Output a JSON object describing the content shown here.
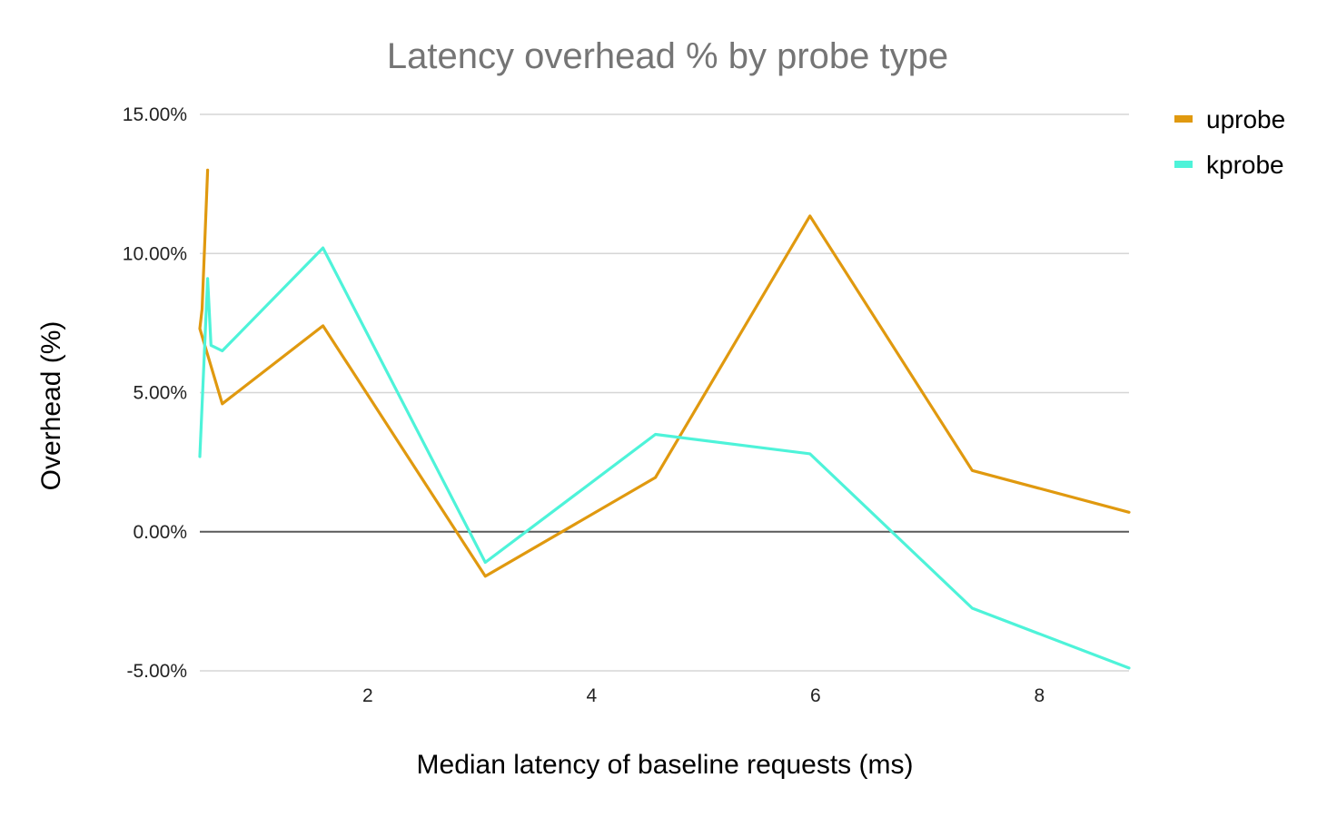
{
  "chart_data": {
    "type": "line",
    "title": "Latency overhead % by probe type",
    "xlabel": "Median latency of baseline requests (ms)",
    "ylabel": "Overhead (%)",
    "xlim": [
      0.5,
      8.8
    ],
    "ylim": [
      -5,
      15
    ],
    "x_ticks": [
      2,
      4,
      6,
      8
    ],
    "x_tick_labels": [
      "2",
      "4",
      "6",
      "8"
    ],
    "y_ticks": [
      -5,
      0,
      5,
      10,
      15
    ],
    "y_tick_labels": [
      "-5.00%",
      "0.00%",
      "5.00%",
      "10.00%",
      "15.00%"
    ],
    "grid": true,
    "legend_position": "top-right",
    "series": [
      {
        "name": "uprobe",
        "color": "#e0990f",
        "points": [
          {
            "x": 0.57,
            "y": 13.0
          },
          {
            "x": 0.52,
            "y": 8.0
          },
          {
            "x": 0.5,
            "y": 7.3
          },
          {
            "x": 0.7,
            "y": 4.6
          },
          {
            "x": 1.6,
            "y": 7.4
          },
          {
            "x": 3.05,
            "y": -1.6
          },
          {
            "x": 4.57,
            "y": 1.95
          },
          {
            "x": 5.95,
            "y": 11.35
          },
          {
            "x": 7.4,
            "y": 2.2
          },
          {
            "x": 8.8,
            "y": 0.7
          }
        ]
      },
      {
        "name": "kprobe",
        "color": "#4ef3d9",
        "points": [
          {
            "x": 0.5,
            "y": 2.7
          },
          {
            "x": 0.57,
            "y": 9.1
          },
          {
            "x": 0.6,
            "y": 6.7
          },
          {
            "x": 0.7,
            "y": 6.5
          },
          {
            "x": 1.6,
            "y": 10.2
          },
          {
            "x": 3.05,
            "y": -1.1
          },
          {
            "x": 4.57,
            "y": 3.5
          },
          {
            "x": 5.95,
            "y": 2.8
          },
          {
            "x": 7.4,
            "y": -2.75
          },
          {
            "x": 8.8,
            "y": -4.9
          }
        ]
      }
    ]
  }
}
